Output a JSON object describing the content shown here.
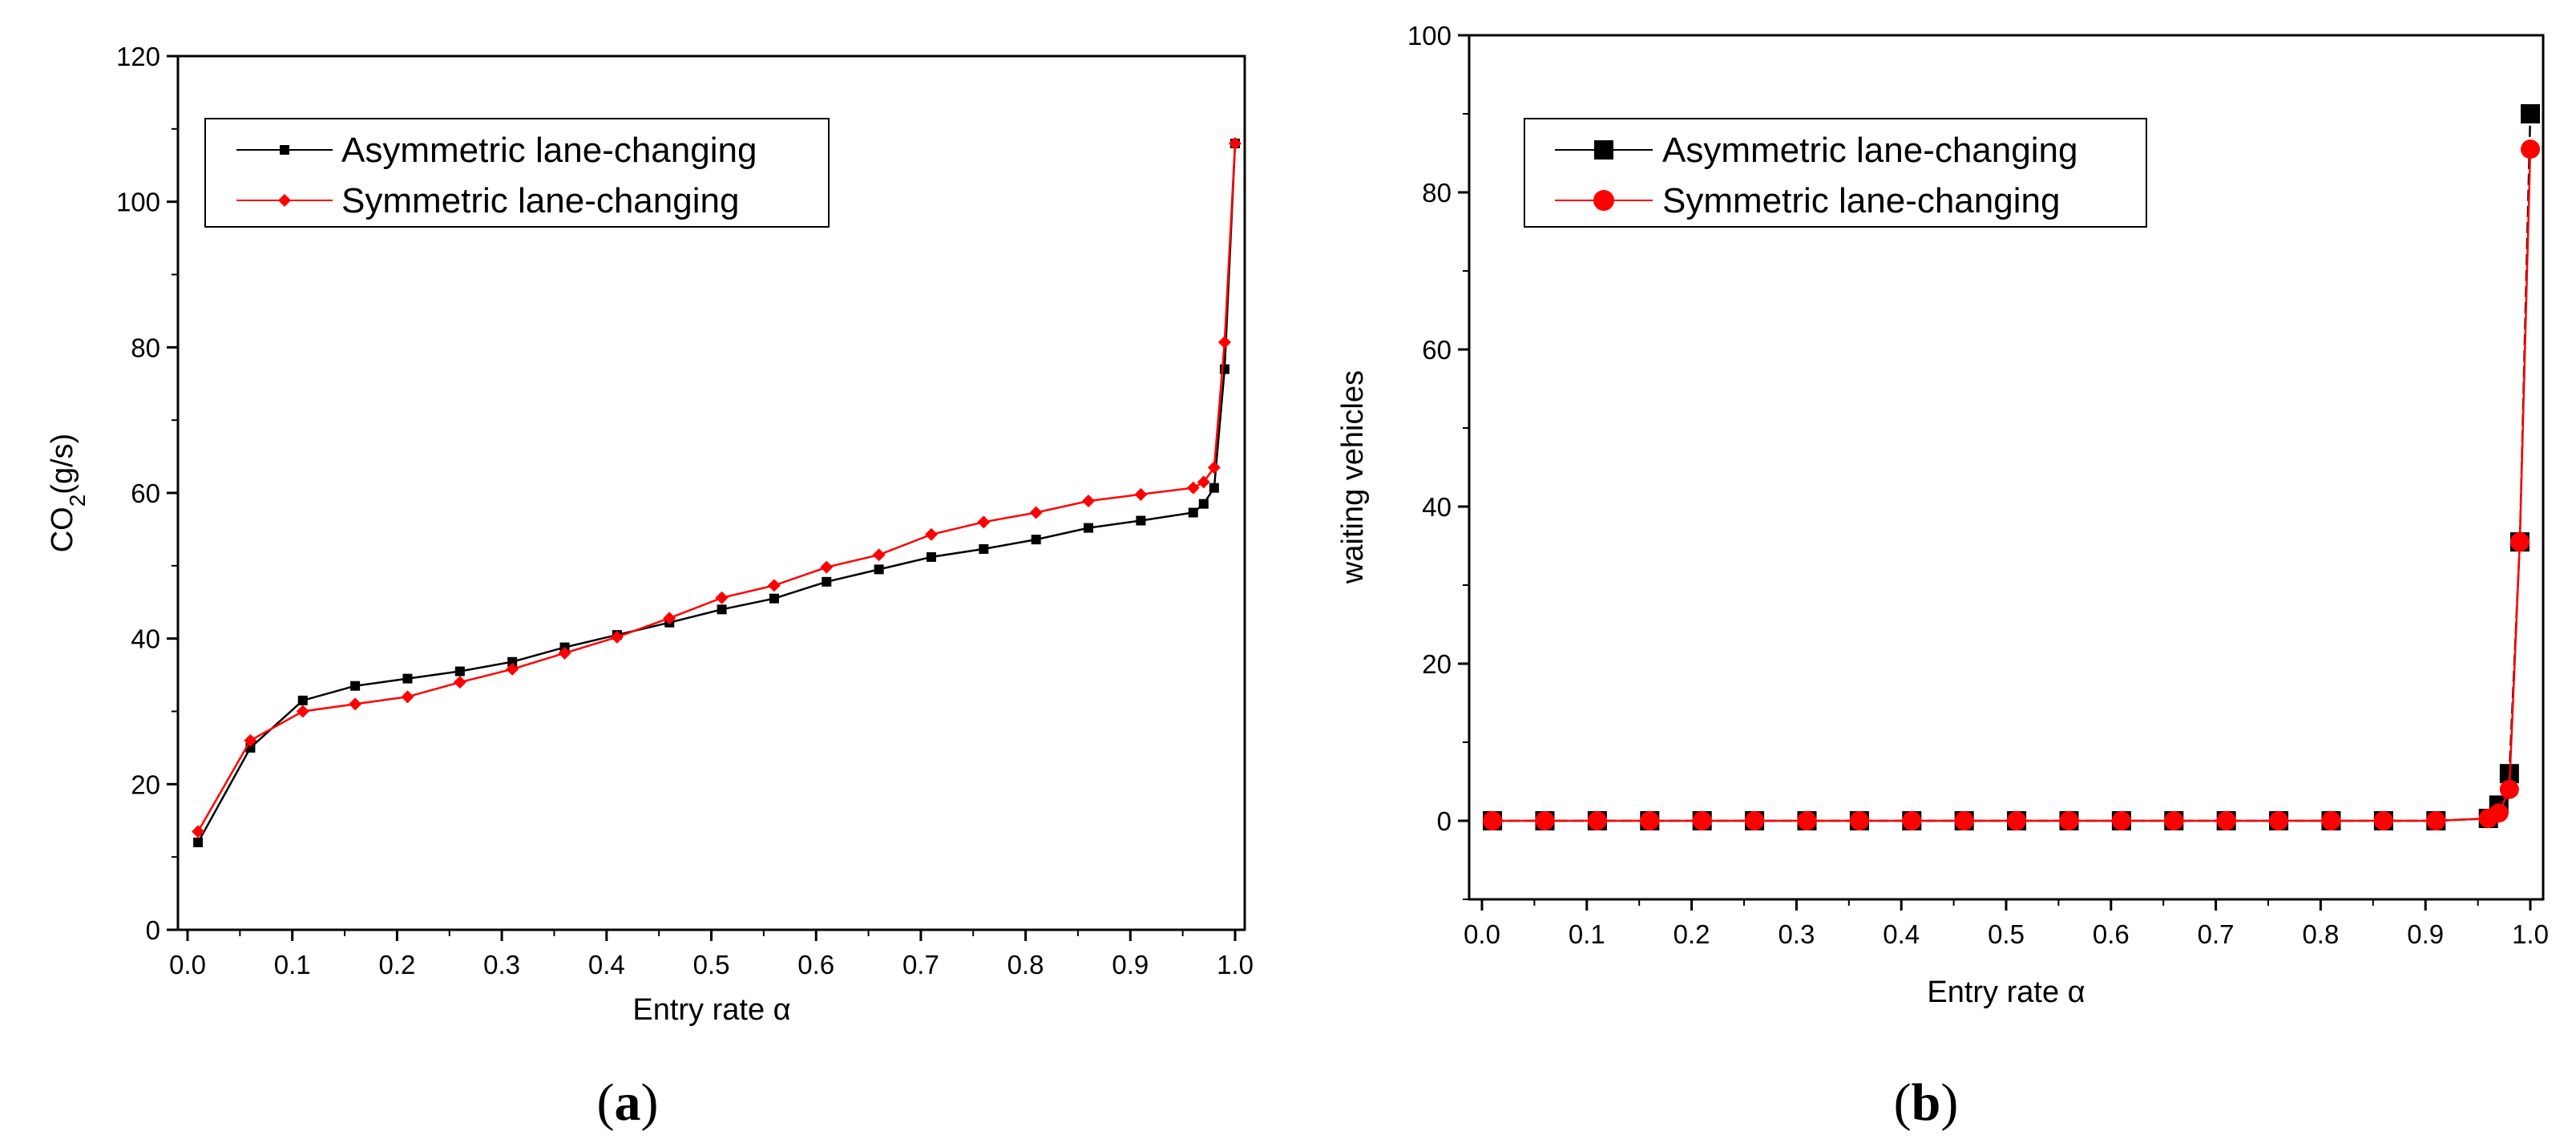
{
  "chart_data": [
    {
      "type": "line",
      "panel_label_open": "(",
      "panel_label_letter": "a",
      "panel_label_close": ")",
      "xlabel": "Entry rate α",
      "ylabel_prefix": "CO",
      "ylabel_sub": "2",
      "ylabel_suffix": "(g/s)",
      "xlim": [
        0.0,
        1.0
      ],
      "ylim": [
        0,
        120
      ],
      "xticks": [
        "0.0",
        "0.1",
        "0.2",
        "0.3",
        "0.4",
        "0.5",
        "0.6",
        "0.7",
        "0.8",
        "0.9",
        "1.0"
      ],
      "yticks": [
        "0",
        "20",
        "40",
        "60",
        "80",
        "100",
        "120"
      ],
      "legend_position": "top-left",
      "series": [
        {
          "name": "Asymmetric lane-changing",
          "color": "#000000",
          "marker": "square",
          "x": [
            0.01,
            0.06,
            0.11,
            0.16,
            0.21,
            0.26,
            0.31,
            0.36,
            0.41,
            0.46,
            0.51,
            0.56,
            0.61,
            0.66,
            0.71,
            0.76,
            0.81,
            0.86,
            0.91,
            0.96,
            0.97,
            0.98,
            0.99,
            1.0
          ],
          "y": [
            12,
            25,
            31.5,
            33.5,
            34.5,
            35.5,
            36.8,
            38.8,
            40.5,
            42.2,
            44,
            45.5,
            47.8,
            49.5,
            51.2,
            52.3,
            53.6,
            55.2,
            56.2,
            57.3,
            58.5,
            60.7,
            77,
            108
          ]
        },
        {
          "name": "Symmetric lane-changing",
          "color": "#ff0000",
          "marker": "diamond",
          "x": [
            0.01,
            0.06,
            0.11,
            0.16,
            0.21,
            0.26,
            0.31,
            0.36,
            0.41,
            0.46,
            0.51,
            0.56,
            0.61,
            0.66,
            0.71,
            0.76,
            0.81,
            0.86,
            0.91,
            0.96,
            0.97,
            0.98,
            0.99,
            1.0
          ],
          "y": [
            13.5,
            26,
            30,
            31,
            32,
            34,
            35.8,
            38,
            40.2,
            42.8,
            45.6,
            47.3,
            49.8,
            51.5,
            54.3,
            56,
            57.3,
            58.9,
            59.8,
            60.7,
            61.5,
            63.5,
            80.7,
            108
          ]
        }
      ]
    },
    {
      "type": "line",
      "panel_label_open": "(",
      "panel_label_letter": "b",
      "panel_label_close": ")",
      "xlabel": "Entry rate α",
      "ylabel": "waiting vehicles",
      "xlim": [
        0.0,
        1.0
      ],
      "ylim": [
        -10,
        100
      ],
      "xticks": [
        "0.0",
        "0.1",
        "0.2",
        "0.3",
        "0.4",
        "0.5",
        "0.6",
        "0.7",
        "0.8",
        "0.9",
        "1.0"
      ],
      "yticks": [
        "0",
        "20",
        "40",
        "60",
        "80",
        "100"
      ],
      "legend_position": "top-left",
      "series": [
        {
          "name": "Asymmetric lane-changing",
          "color": "#000000",
          "marker": "square",
          "x": [
            0.01,
            0.06,
            0.11,
            0.16,
            0.21,
            0.26,
            0.31,
            0.36,
            0.41,
            0.46,
            0.51,
            0.56,
            0.61,
            0.66,
            0.71,
            0.76,
            0.81,
            0.86,
            0.91,
            0.96,
            0.97,
            0.98,
            0.99,
            1.0
          ],
          "y": [
            0,
            0,
            0,
            0,
            0,
            0,
            0,
            0,
            0,
            0,
            0,
            0,
            0,
            0,
            0,
            0,
            0,
            0,
            0,
            0.3,
            2,
            6,
            35.5,
            90
          ]
        },
        {
          "name": "Symmetric lane-changing",
          "color": "#ff0000",
          "marker": "circle",
          "x": [
            0.01,
            0.06,
            0.11,
            0.16,
            0.21,
            0.26,
            0.31,
            0.36,
            0.41,
            0.46,
            0.51,
            0.56,
            0.61,
            0.66,
            0.71,
            0.76,
            0.81,
            0.86,
            0.91,
            0.96,
            0.97,
            0.98,
            0.99,
            1.0
          ],
          "y": [
            0,
            0,
            0,
            0,
            0,
            0,
            0,
            0,
            0,
            0,
            0,
            0,
            0,
            0,
            0,
            0,
            0,
            0,
            0,
            0.3,
            1,
            4,
            35.5,
            85.5
          ]
        }
      ]
    }
  ]
}
